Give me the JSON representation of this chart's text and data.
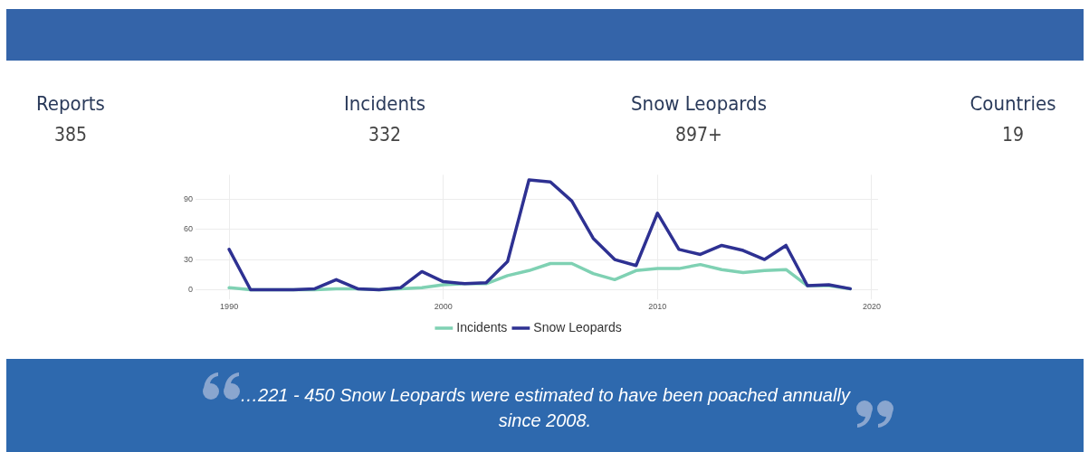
{
  "chart_data": {
    "type": "line",
    "x": [
      1990,
      1991,
      1992,
      1993,
      1994,
      1995,
      1996,
      1997,
      1998,
      1999,
      2000,
      2001,
      2002,
      2003,
      2004,
      2005,
      2006,
      2007,
      2008,
      2009,
      2010,
      2011,
      2012,
      2013,
      2014,
      2015,
      2016,
      2017,
      2018,
      2019
    ],
    "series": [
      {
        "name": "Incidents",
        "color": "#7fd1b3",
        "values": [
          2,
          0,
          0,
          0,
          0,
          1,
          1,
          0,
          1,
          2,
          5,
          6,
          6,
          14,
          19,
          26,
          26,
          16,
          10,
          19,
          21,
          21,
          25,
          20,
          17,
          19,
          20,
          4,
          4,
          1
        ]
      },
      {
        "name": "Snow Leopards",
        "color": "#2e3192",
        "values": [
          40,
          0,
          0,
          0,
          1,
          10,
          1,
          0,
          2,
          18,
          8,
          6,
          7,
          28,
          109,
          107,
          88,
          51,
          30,
          24,
          76,
          40,
          35,
          44,
          39,
          30,
          44,
          4,
          5,
          1
        ]
      }
    ],
    "xlim": [
      1988.6,
      2020.3
    ],
    "xticks": [
      1990,
      2000,
      2010,
      2020
    ],
    "ylim": [
      -6,
      114
    ],
    "yticks": [
      0,
      30,
      60,
      90
    ],
    "grid": true,
    "legend": "bottom",
    "marker": "none",
    "line_style": "solid",
    "annotations": [
      "Reports",
      "385",
      "Incidents",
      "332",
      "Snow Leopards",
      "897+",
      "Countries",
      "19",
      "…221 - 450 Snow Leopards were estimated to have been poached annually since 2008."
    ]
  }
}
